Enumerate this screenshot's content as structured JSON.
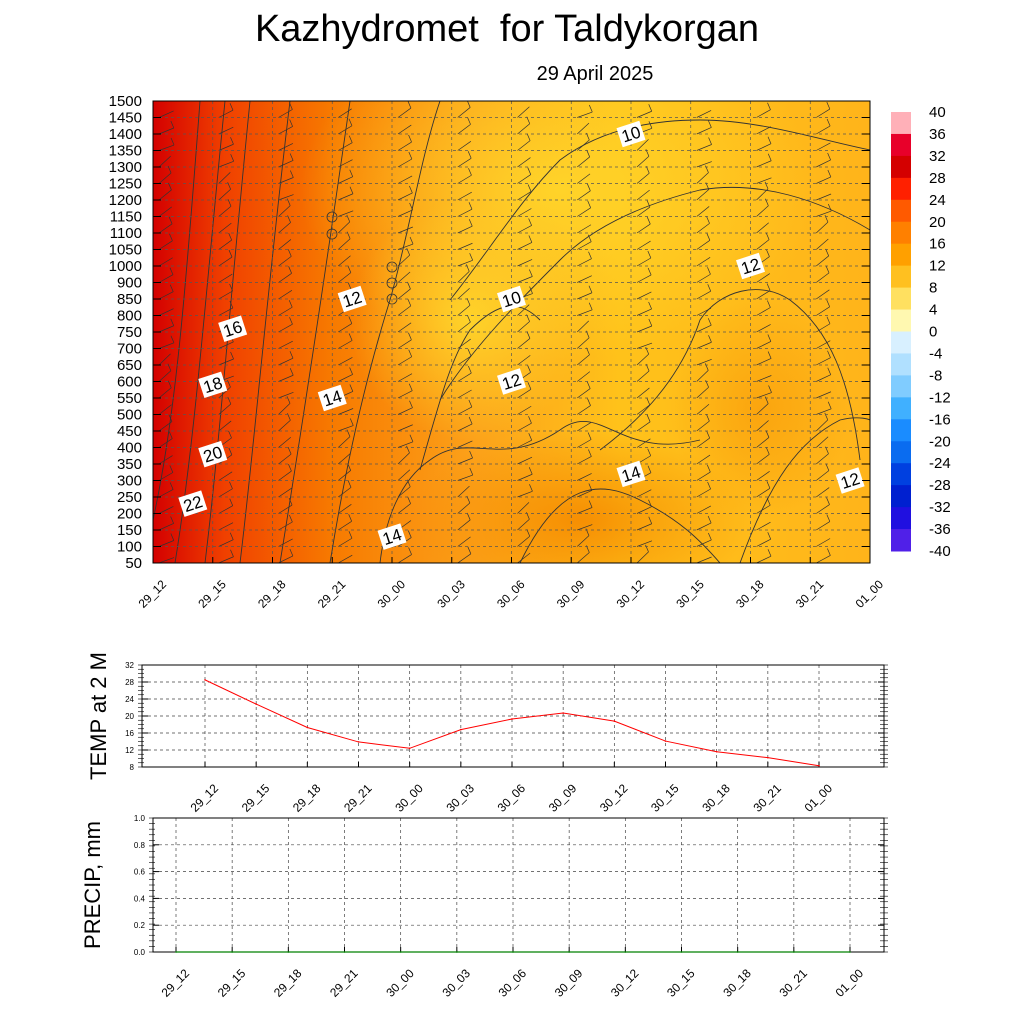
{
  "title": "Kazhydromet  for Taldykorgan",
  "subtitle": "29 April 2025",
  "chart_data": [
    {
      "type": "heatmap",
      "name": "Temperature and wind cross-section",
      "x_ticks": [
        "29_12",
        "29_15",
        "29_18",
        "29_21",
        "30_00",
        "30_03",
        "30_06",
        "30_09",
        "30_12",
        "30_15",
        "30_18",
        "30_21",
        "01_00"
      ],
      "y_ticks": [
        50,
        100,
        150,
        200,
        250,
        300,
        350,
        400,
        450,
        500,
        550,
        600,
        650,
        700,
        750,
        800,
        850,
        900,
        1000,
        1050,
        1100,
        1150,
        1200,
        1250,
        1300,
        1350,
        1400,
        1450,
        1500
      ],
      "y_range": [
        50,
        1500
      ],
      "grid": true,
      "colorbar": {
        "ticks": [
          40,
          36,
          32,
          28,
          24,
          20,
          16,
          12,
          8,
          4,
          0,
          -4,
          -8,
          -12,
          -16,
          -20,
          -24,
          -28,
          -32,
          -36,
          -40
        ],
        "range": [
          -40,
          40
        ],
        "colors": {
          "hot": "#d40000",
          "warm": "#f77a00",
          "mild": "#ffc21a",
          "cool": "#fff8b0",
          "cold": "#1a8cff",
          "frigid": "#7a2ee6"
        }
      },
      "contour_labels": [
        {
          "text": "22",
          "x": "29_14",
          "y": 230
        },
        {
          "text": "20",
          "x": "29_15",
          "y": 380
        },
        {
          "text": "18",
          "x": "29_15",
          "y": 590
        },
        {
          "text": "16",
          "x": "29_16",
          "y": 760
        },
        {
          "text": "14",
          "x": "29_21",
          "y": 550
        },
        {
          "text": "12",
          "x": "29_22",
          "y": 850
        },
        {
          "text": "14",
          "x": "30_00",
          "y": 130
        },
        {
          "text": "10",
          "x": "30_06",
          "y": 850
        },
        {
          "text": "12",
          "x": "30_06",
          "y": 600
        },
        {
          "text": "10",
          "x": "30_12",
          "y": 1400
        },
        {
          "text": "14",
          "x": "30_12",
          "y": 320
        },
        {
          "text": "12",
          "x": "30_18",
          "y": 1000
        },
        {
          "text": "12",
          "x": "30_23",
          "y": 300
        }
      ],
      "contour_levels": [
        22,
        20,
        18,
        16,
        14,
        12,
        10
      ]
    },
    {
      "type": "line",
      "ylabel": "TEMP at 2 M",
      "ylim": [
        8,
        32
      ],
      "y_ticks": [
        8,
        12,
        16,
        20,
        24,
        28,
        32
      ],
      "x": [
        "29_12",
        "29_15",
        "29_18",
        "29_21",
        "30_00",
        "30_03",
        "30_06",
        "30_09",
        "30_12",
        "30_15",
        "30_18",
        "30_21",
        "01_00"
      ],
      "values": [
        28.5,
        22.8,
        17.3,
        13.9,
        12.4,
        16.8,
        19.3,
        20.7,
        18.8,
        14.1,
        11.6,
        10.2,
        8.3
      ],
      "color": "#ff0000",
      "grid": true
    },
    {
      "type": "line",
      "ylabel": "PRECIP, mm",
      "ylim": [
        0.0,
        1.0
      ],
      "y_ticks": [
        "0.0",
        "0.2",
        "0.4",
        "0.6",
        "0.8",
        "1.0"
      ],
      "x": [
        "29_12",
        "29_15",
        "29_18",
        "29_21",
        "30_00",
        "30_03",
        "30_06",
        "30_09",
        "30_12",
        "30_15",
        "30_18",
        "30_21",
        "01_00"
      ],
      "values": [
        0,
        0,
        0,
        0,
        0,
        0,
        0,
        0,
        0,
        0,
        0,
        0,
        0
      ],
      "color": "#008000",
      "grid": true
    }
  ]
}
